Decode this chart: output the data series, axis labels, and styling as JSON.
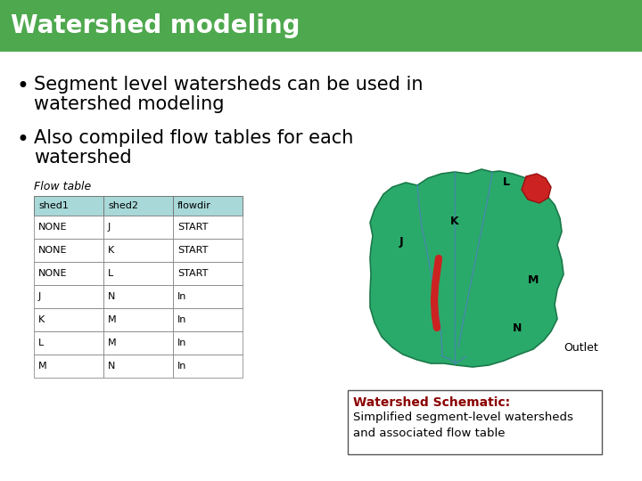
{
  "title": "Watershed modeling",
  "title_bg_color": "#4ea84e",
  "title_text_color": "#ffffff",
  "bullet1_line1": "Segment level watersheds can be used in",
  "bullet1_line2": "watershed modeling",
  "bullet2_line1": "Also compiled flow tables for each",
  "bullet2_line2": "watershed",
  "table_title": "Flow table",
  "table_header": [
    "shed1",
    "shed2",
    "flowdir"
  ],
  "table_header_bg": "#a8d8d8",
  "table_rows": [
    [
      "NONE",
      "J",
      "START"
    ],
    [
      "NONE",
      "K",
      "START"
    ],
    [
      "NONE",
      "L",
      "START"
    ],
    [
      "J",
      "N",
      "In"
    ],
    [
      "K",
      "M",
      "In"
    ],
    [
      "L",
      "M",
      "In"
    ],
    [
      "M",
      "N",
      "In"
    ]
  ],
  "caption_title": "Watershed Schematic:",
  "caption_title_color": "#8b0000",
  "caption_text": "Simplified segment-level watersheds\nand associated flow table",
  "bg_color": "#ffffff",
  "body_text_color": "#000000",
  "bullet_fontsize": 15,
  "table_fontsize": 8,
  "caption_fontsize": 10
}
